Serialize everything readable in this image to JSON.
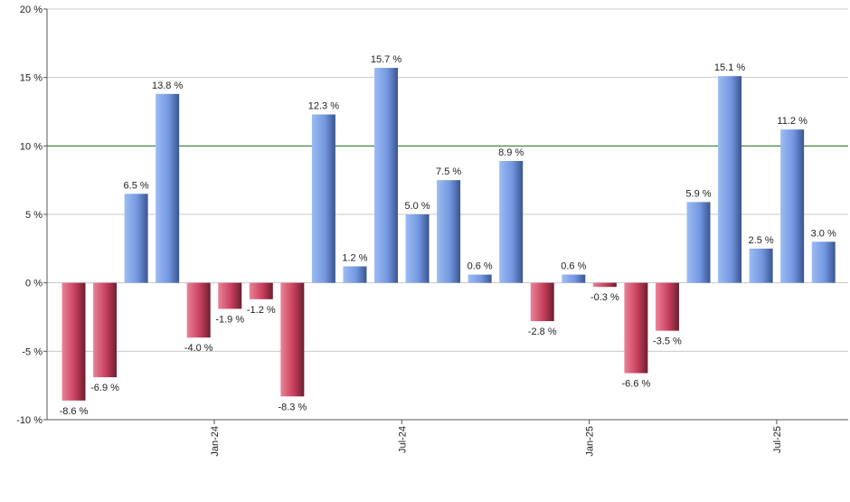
{
  "chart_data": {
    "type": "bar",
    "title": "",
    "xlabel": "",
    "ylabel": "",
    "ylim": [
      -10,
      20
    ],
    "y_ticks": [
      -10,
      -5,
      0,
      5,
      10,
      15,
      20
    ],
    "y_tick_labels": [
      "-10 %",
      "-5 %",
      "0 %",
      "5 %",
      "10 %",
      "15 %",
      "20 %"
    ],
    "value_suffix": " %",
    "reference_line": 10,
    "x_tick_labels": [
      {
        "after_bar": 4,
        "label": "Jan-24"
      },
      {
        "after_bar": 10,
        "label": "Jul-24"
      },
      {
        "after_bar": 16,
        "label": "Jan-25"
      },
      {
        "after_bar": 22,
        "label": "Jul-25"
      }
    ],
    "values": [
      -8.6,
      -6.9,
      6.5,
      13.8,
      -4.0,
      -1.9,
      -1.2,
      -8.3,
      12.3,
      1.2,
      15.7,
      5.0,
      7.5,
      0.6,
      8.9,
      -2.8,
      0.6,
      -0.3,
      -6.6,
      -3.5,
      5.9,
      15.1,
      2.5,
      11.2,
      3.0
    ],
    "colors": {
      "positive": "#7fa2e6",
      "negative": "#c8405c",
      "reference": "#1f7a1f",
      "grid": "#c8c8c8",
      "axis": "#555555"
    },
    "grid": true,
    "legend": "none"
  }
}
